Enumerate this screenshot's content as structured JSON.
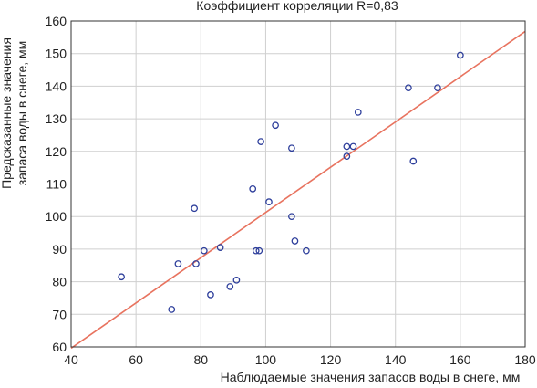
{
  "chart_data": {
    "type": "scatter",
    "title": "Коэффициент корреляции R=0,83",
    "xlabel": "Наблюдаемые значения запасов воды в снеге, мм",
    "ylabel_lines": [
      "Предсказанные значения",
      "запаса воды в снеге, мм"
    ],
    "xlim": [
      40,
      180
    ],
    "ylim": [
      60,
      160
    ],
    "x_ticks": [
      40,
      60,
      80,
      100,
      120,
      140,
      160,
      180
    ],
    "y_ticks": [
      60,
      70,
      80,
      90,
      100,
      110,
      120,
      130,
      140,
      150,
      160
    ],
    "grid": true,
    "points": [
      {
        "x": 55.5,
        "y": 81.5
      },
      {
        "x": 71,
        "y": 71.5
      },
      {
        "x": 73,
        "y": 85.5
      },
      {
        "x": 78,
        "y": 102.5
      },
      {
        "x": 78.5,
        "y": 85.5
      },
      {
        "x": 81,
        "y": 89.5
      },
      {
        "x": 83,
        "y": 76
      },
      {
        "x": 86,
        "y": 90.5
      },
      {
        "x": 89,
        "y": 78.5
      },
      {
        "x": 91,
        "y": 80.5
      },
      {
        "x": 96,
        "y": 108.5
      },
      {
        "x": 97,
        "y": 89.5
      },
      {
        "x": 98,
        "y": 89.5
      },
      {
        "x": 98.5,
        "y": 123
      },
      {
        "x": 101,
        "y": 104.5
      },
      {
        "x": 103,
        "y": 128
      },
      {
        "x": 108,
        "y": 100
      },
      {
        "x": 108,
        "y": 121
      },
      {
        "x": 109,
        "y": 92.5
      },
      {
        "x": 112.5,
        "y": 89.5
      },
      {
        "x": 125,
        "y": 118.5
      },
      {
        "x": 125,
        "y": 121.5
      },
      {
        "x": 127,
        "y": 121.5
      },
      {
        "x": 128.5,
        "y": 132
      },
      {
        "x": 144,
        "y": 139.5
      },
      {
        "x": 145.5,
        "y": 117
      },
      {
        "x": 153,
        "y": 139.5
      },
      {
        "x": 160,
        "y": 149.5
      }
    ],
    "fit_line": {
      "x": [
        40,
        180
      ],
      "y": [
        59.6,
        156.8
      ]
    },
    "colors": {
      "points": "#2d3e9b",
      "fit_line": "#e8735f",
      "grid": "#cfcfcf",
      "axes": "#333333"
    }
  }
}
